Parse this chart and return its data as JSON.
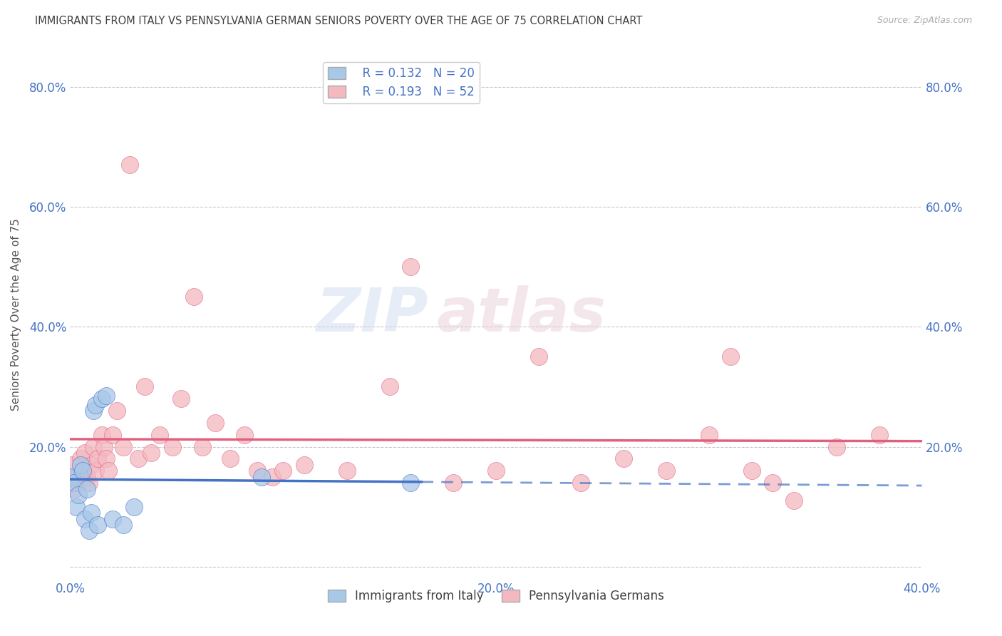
{
  "title": "IMMIGRANTS FROM ITALY VS PENNSYLVANIA GERMAN SENIORS POVERTY OVER THE AGE OF 75 CORRELATION CHART",
  "source": "Source: ZipAtlas.com",
  "ylabel": "Seniors Poverty Over the Age of 75",
  "xlim": [
    0.0,
    0.4
  ],
  "ylim": [
    -0.02,
    0.86
  ],
  "xticks": [
    0.0,
    0.1,
    0.2,
    0.3,
    0.4
  ],
  "yticks": [
    0.0,
    0.2,
    0.4,
    0.6,
    0.8
  ],
  "ytick_labels": [
    "",
    "20.0%",
    "40.0%",
    "60.0%",
    "80.0%"
  ],
  "xtick_labels": [
    "0.0%",
    "",
    "20.0%",
    "",
    "40.0%"
  ],
  "legend_r1": "R = 0.132",
  "legend_n1": "N = 20",
  "legend_r2": "R = 0.193",
  "legend_n2": "N = 52",
  "italy_color": "#a8c8e8",
  "pg_color": "#f4b8c0",
  "italy_line_color": "#4472c4",
  "pg_line_color": "#e06080",
  "background_color": "#ffffff",
  "grid_color": "#c8c8c8",
  "title_color": "#404040",
  "axis_color": "#4472c4",
  "watermark": "ZIPatlas",
  "italy_x": [
    0.001,
    0.002,
    0.003,
    0.004,
    0.005,
    0.006,
    0.007,
    0.008,
    0.009,
    0.01,
    0.011,
    0.012,
    0.013,
    0.015,
    0.017,
    0.02,
    0.025,
    0.03,
    0.09,
    0.16
  ],
  "italy_y": [
    0.15,
    0.14,
    0.1,
    0.12,
    0.17,
    0.16,
    0.08,
    0.13,
    0.06,
    0.09,
    0.26,
    0.27,
    0.07,
    0.28,
    0.285,
    0.08,
    0.07,
    0.1,
    0.15,
    0.14
  ],
  "pg_x": [
    0.001,
    0.002,
    0.003,
    0.004,
    0.005,
    0.006,
    0.007,
    0.008,
    0.009,
    0.01,
    0.011,
    0.012,
    0.013,
    0.015,
    0.016,
    0.017,
    0.018,
    0.02,
    0.022,
    0.025,
    0.028,
    0.032,
    0.035,
    0.038,
    0.042,
    0.048,
    0.052,
    0.058,
    0.062,
    0.068,
    0.075,
    0.082,
    0.088,
    0.095,
    0.1,
    0.11,
    0.13,
    0.15,
    0.16,
    0.18,
    0.2,
    0.22,
    0.24,
    0.26,
    0.28,
    0.3,
    0.31,
    0.32,
    0.33,
    0.34,
    0.36,
    0.38
  ],
  "pg_y": [
    0.17,
    0.13,
    0.15,
    0.14,
    0.18,
    0.16,
    0.19,
    0.15,
    0.14,
    0.17,
    0.2,
    0.16,
    0.18,
    0.22,
    0.2,
    0.18,
    0.16,
    0.22,
    0.26,
    0.2,
    0.67,
    0.18,
    0.3,
    0.19,
    0.22,
    0.2,
    0.28,
    0.45,
    0.2,
    0.24,
    0.18,
    0.22,
    0.16,
    0.15,
    0.16,
    0.17,
    0.16,
    0.3,
    0.5,
    0.14,
    0.16,
    0.35,
    0.14,
    0.18,
    0.16,
    0.22,
    0.35,
    0.16,
    0.14,
    0.11,
    0.2,
    0.22
  ]
}
